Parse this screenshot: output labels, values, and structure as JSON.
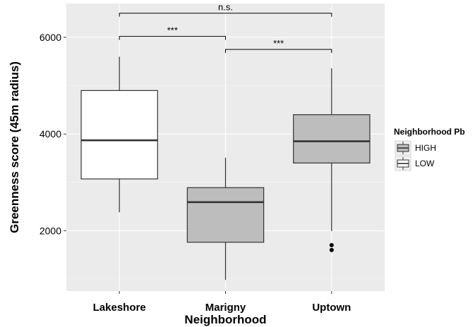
{
  "chart_data": {
    "type": "boxplot",
    "xlabel": "Neighborhood",
    "ylabel": "Greenness score (45m radius)",
    "ylim": [
      750,
      6700
    ],
    "yticks": [
      2000,
      4000,
      6000
    ],
    "grid": true,
    "categories": [
      "Lakeshore",
      "Marigny",
      "Uptown"
    ],
    "legend": {
      "title": "Neighborhood Pb",
      "position": "right",
      "entries": [
        {
          "label": "HIGH",
          "fill": "#bdbdbd"
        },
        {
          "label": "LOW",
          "fill": "#ffffff"
        }
      ]
    },
    "boxes": [
      {
        "category": "Lakeshore",
        "group": "LOW",
        "whisker_low": 2380,
        "q1": 3070,
        "median": 3870,
        "q3": 4900,
        "whisker_high": 5600,
        "outliers": []
      },
      {
        "category": "Marigny",
        "group": "HIGH",
        "whisker_low": 980,
        "q1": 1760,
        "median": 2590,
        "q3": 2890,
        "whisker_high": 3510,
        "outliers": []
      },
      {
        "category": "Uptown",
        "group": "HIGH",
        "whisker_low": 1990,
        "q1": 3400,
        "median": 3850,
        "q3": 4400,
        "whisker_high": 5360,
        "outliers": [
          1700,
          1600
        ]
      }
    ],
    "annotations": [
      {
        "from": "Lakeshore",
        "to": "Uptown",
        "y": 6500,
        "label": "n.s."
      },
      {
        "from": "Lakeshore",
        "to": "Marigny",
        "y": 6020,
        "label": "***"
      },
      {
        "from": "Marigny",
        "to": "Uptown",
        "y": 5750,
        "label": "***"
      }
    ],
    "colors": {
      "panel": "#ebebeb",
      "grid_major": "#ffffff",
      "high_fill": "#bdbdbd",
      "low_fill": "#ffffff",
      "box_line": "#333333",
      "median_line": "#333333"
    }
  }
}
